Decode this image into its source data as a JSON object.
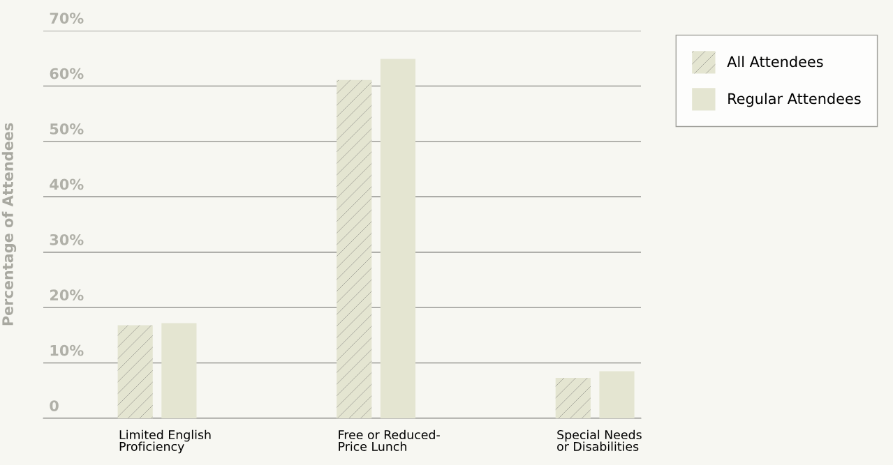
{
  "chart_data": {
    "type": "bar",
    "ylabel": "Percentage of Attendees",
    "categories": [
      "Limited English\nProficiency",
      "Free or Reduced-\nPrice Lunch",
      "Special Needs\nor Disabilities"
    ],
    "series": [
      {
        "name": "All Attendees",
        "color": "#e4e5d1",
        "values": [
          16.8,
          61.1,
          7.3
        ]
      },
      {
        "name": "Regular Attendees",
        "color": "#e4e5d1",
        "values": [
          17.2,
          64.9,
          8.5
        ]
      }
    ],
    "ylim": [
      0,
      70
    ],
    "yticks": [
      0,
      {
        "value": 10,
        "label": "10%"
      },
      {
        "value": 20,
        "label": "20%"
      },
      {
        "value": 30,
        "label": "30%"
      },
      {
        "value": 40,
        "label": "40%"
      },
      {
        "value": 50,
        "label": "50%"
      },
      {
        "value": 60,
        "label": "60%"
      },
      {
        "value": 70,
        "label": "70%"
      }
    ],
    "grid": "y",
    "legend": "top right"
  }
}
